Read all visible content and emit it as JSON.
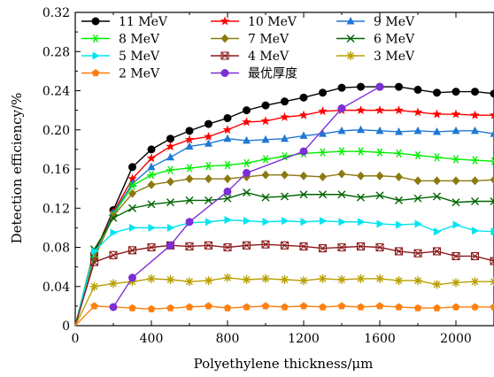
{
  "chart_data": {
    "type": "line",
    "xlabel": "Polyethylene thickness/μm",
    "ylabel": "Detection efficiency/%",
    "xlim": [
      0,
      2200
    ],
    "ylim": [
      0,
      0.32
    ],
    "xticks": [
      0,
      400,
      800,
      1200,
      1600,
      2000
    ],
    "xtick_labels": [
      "0",
      "400",
      "800",
      "1200",
      "1600",
      "2000"
    ],
    "yticks": [
      0,
      0.04,
      0.08,
      0.12,
      0.16,
      0.2,
      0.24,
      0.28,
      0.32
    ],
    "ytick_labels": [
      "0",
      "0.04",
      "0.08",
      "0.12",
      "0.16",
      "0.20",
      "0.24",
      "0.28",
      "0.32"
    ],
    "grid": false,
    "legend_position": "top-left",
    "x": [
      0,
      100,
      200,
      300,
      400,
      500,
      600,
      700,
      800,
      900,
      1000,
      1100,
      1200,
      1300,
      1400,
      1500,
      1600,
      1700,
      1800,
      1900,
      2000,
      2100,
      2200
    ],
    "series": [
      {
        "name": "11 MeV",
        "color": "#000000",
        "marker": "circle",
        "values": [
          0,
          0.073,
          0.118,
          0.162,
          0.18,
          0.191,
          0.199,
          0.206,
          0.212,
          0.22,
          0.225,
          0.229,
          0.233,
          0.238,
          0.243,
          0.244,
          0.244,
          0.244,
          0.241,
          0.238,
          0.239,
          0.239,
          0.237
        ]
      },
      {
        "name": "10 MeV",
        "color": "#ff0000",
        "marker": "star",
        "values": [
          0,
          0.072,
          0.116,
          0.15,
          0.171,
          0.183,
          0.19,
          0.193,
          0.2,
          0.208,
          0.209,
          0.213,
          0.215,
          0.219,
          0.22,
          0.22,
          0.22,
          0.22,
          0.218,
          0.216,
          0.216,
          0.215,
          0.215
        ]
      },
      {
        "name": "9 MeV",
        "color": "#1f78d4",
        "marker": "triangle",
        "values": [
          0,
          0.071,
          0.115,
          0.145,
          0.162,
          0.172,
          0.183,
          0.186,
          0.191,
          0.189,
          0.19,
          0.191,
          0.194,
          0.196,
          0.199,
          0.2,
          0.199,
          0.198,
          0.199,
          0.198,
          0.199,
          0.199,
          0.196
        ]
      },
      {
        "name": "8 MeV",
        "color": "#00ee00",
        "marker": "asterisk",
        "values": [
          0,
          0.07,
          0.113,
          0.143,
          0.154,
          0.159,
          0.161,
          0.163,
          0.164,
          0.166,
          0.17,
          0.173,
          0.176,
          0.177,
          0.178,
          0.178,
          0.177,
          0.176,
          0.174,
          0.172,
          0.17,
          0.169,
          0.168
        ]
      },
      {
        "name": "7 MeV",
        "color": "#8b7a10",
        "marker": "diamond",
        "values": [
          0,
          0.069,
          0.112,
          0.135,
          0.144,
          0.147,
          0.15,
          0.15,
          0.15,
          0.152,
          0.154,
          0.154,
          0.153,
          0.152,
          0.155,
          0.153,
          0.153,
          0.152,
          0.148,
          0.148,
          0.148,
          0.148,
          0.149
        ]
      },
      {
        "name": "6 MeV",
        "color": "#006400",
        "marker": "x",
        "values": [
          0,
          0.078,
          0.11,
          0.12,
          0.124,
          0.126,
          0.128,
          0.128,
          0.13,
          0.136,
          0.131,
          0.132,
          0.134,
          0.134,
          0.134,
          0.131,
          0.133,
          0.128,
          0.13,
          0.132,
          0.126,
          0.127,
          0.127
        ]
      },
      {
        "name": "5 MeV",
        "color": "#00e5ee",
        "marker": "triangle-right",
        "values": [
          0,
          0.076,
          0.095,
          0.1,
          0.1,
          0.1,
          0.105,
          0.106,
          0.108,
          0.107,
          0.106,
          0.107,
          0.106,
          0.107,
          0.106,
          0.106,
          0.104,
          0.103,
          0.104,
          0.096,
          0.103,
          0.097,
          0.096
        ]
      },
      {
        "name": "4 MeV",
        "color": "#8b1a1a",
        "marker": "square-x",
        "values": [
          0,
          0.065,
          0.072,
          0.077,
          0.08,
          0.082,
          0.081,
          0.082,
          0.08,
          0.082,
          0.083,
          0.082,
          0.081,
          0.079,
          0.08,
          0.081,
          0.08,
          0.076,
          0.074,
          0.076,
          0.071,
          0.071,
          0.066
        ]
      },
      {
        "name": "3 MeV",
        "color": "#b8a000",
        "marker": "star-y",
        "values": [
          0,
          0.04,
          0.043,
          0.045,
          0.048,
          0.047,
          0.045,
          0.046,
          0.049,
          0.047,
          0.048,
          0.047,
          0.046,
          0.048,
          0.047,
          0.048,
          0.048,
          0.046,
          0.046,
          0.042,
          0.044,
          0.045,
          0.045
        ]
      },
      {
        "name": "2 MeV",
        "color": "#ff7f0e",
        "marker": "pentagon",
        "values": [
          0,
          0.02,
          0.019,
          0.018,
          0.017,
          0.018,
          0.019,
          0.02,
          0.018,
          0.019,
          0.02,
          0.019,
          0.02,
          0.019,
          0.02,
          0.019,
          0.02,
          0.019,
          0.018,
          0.018,
          0.019,
          0.019,
          0.019
        ]
      },
      {
        "name": "最优厚度",
        "color": "#7b2fd4",
        "marker": "circle",
        "x": [
          200,
          300,
          500,
          600,
          800,
          900,
          1200,
          1400,
          1600
        ],
        "values": [
          0.019,
          0.049,
          0.082,
          0.106,
          0.137,
          0.156,
          0.178,
          0.222,
          0.244
        ]
      }
    ]
  }
}
